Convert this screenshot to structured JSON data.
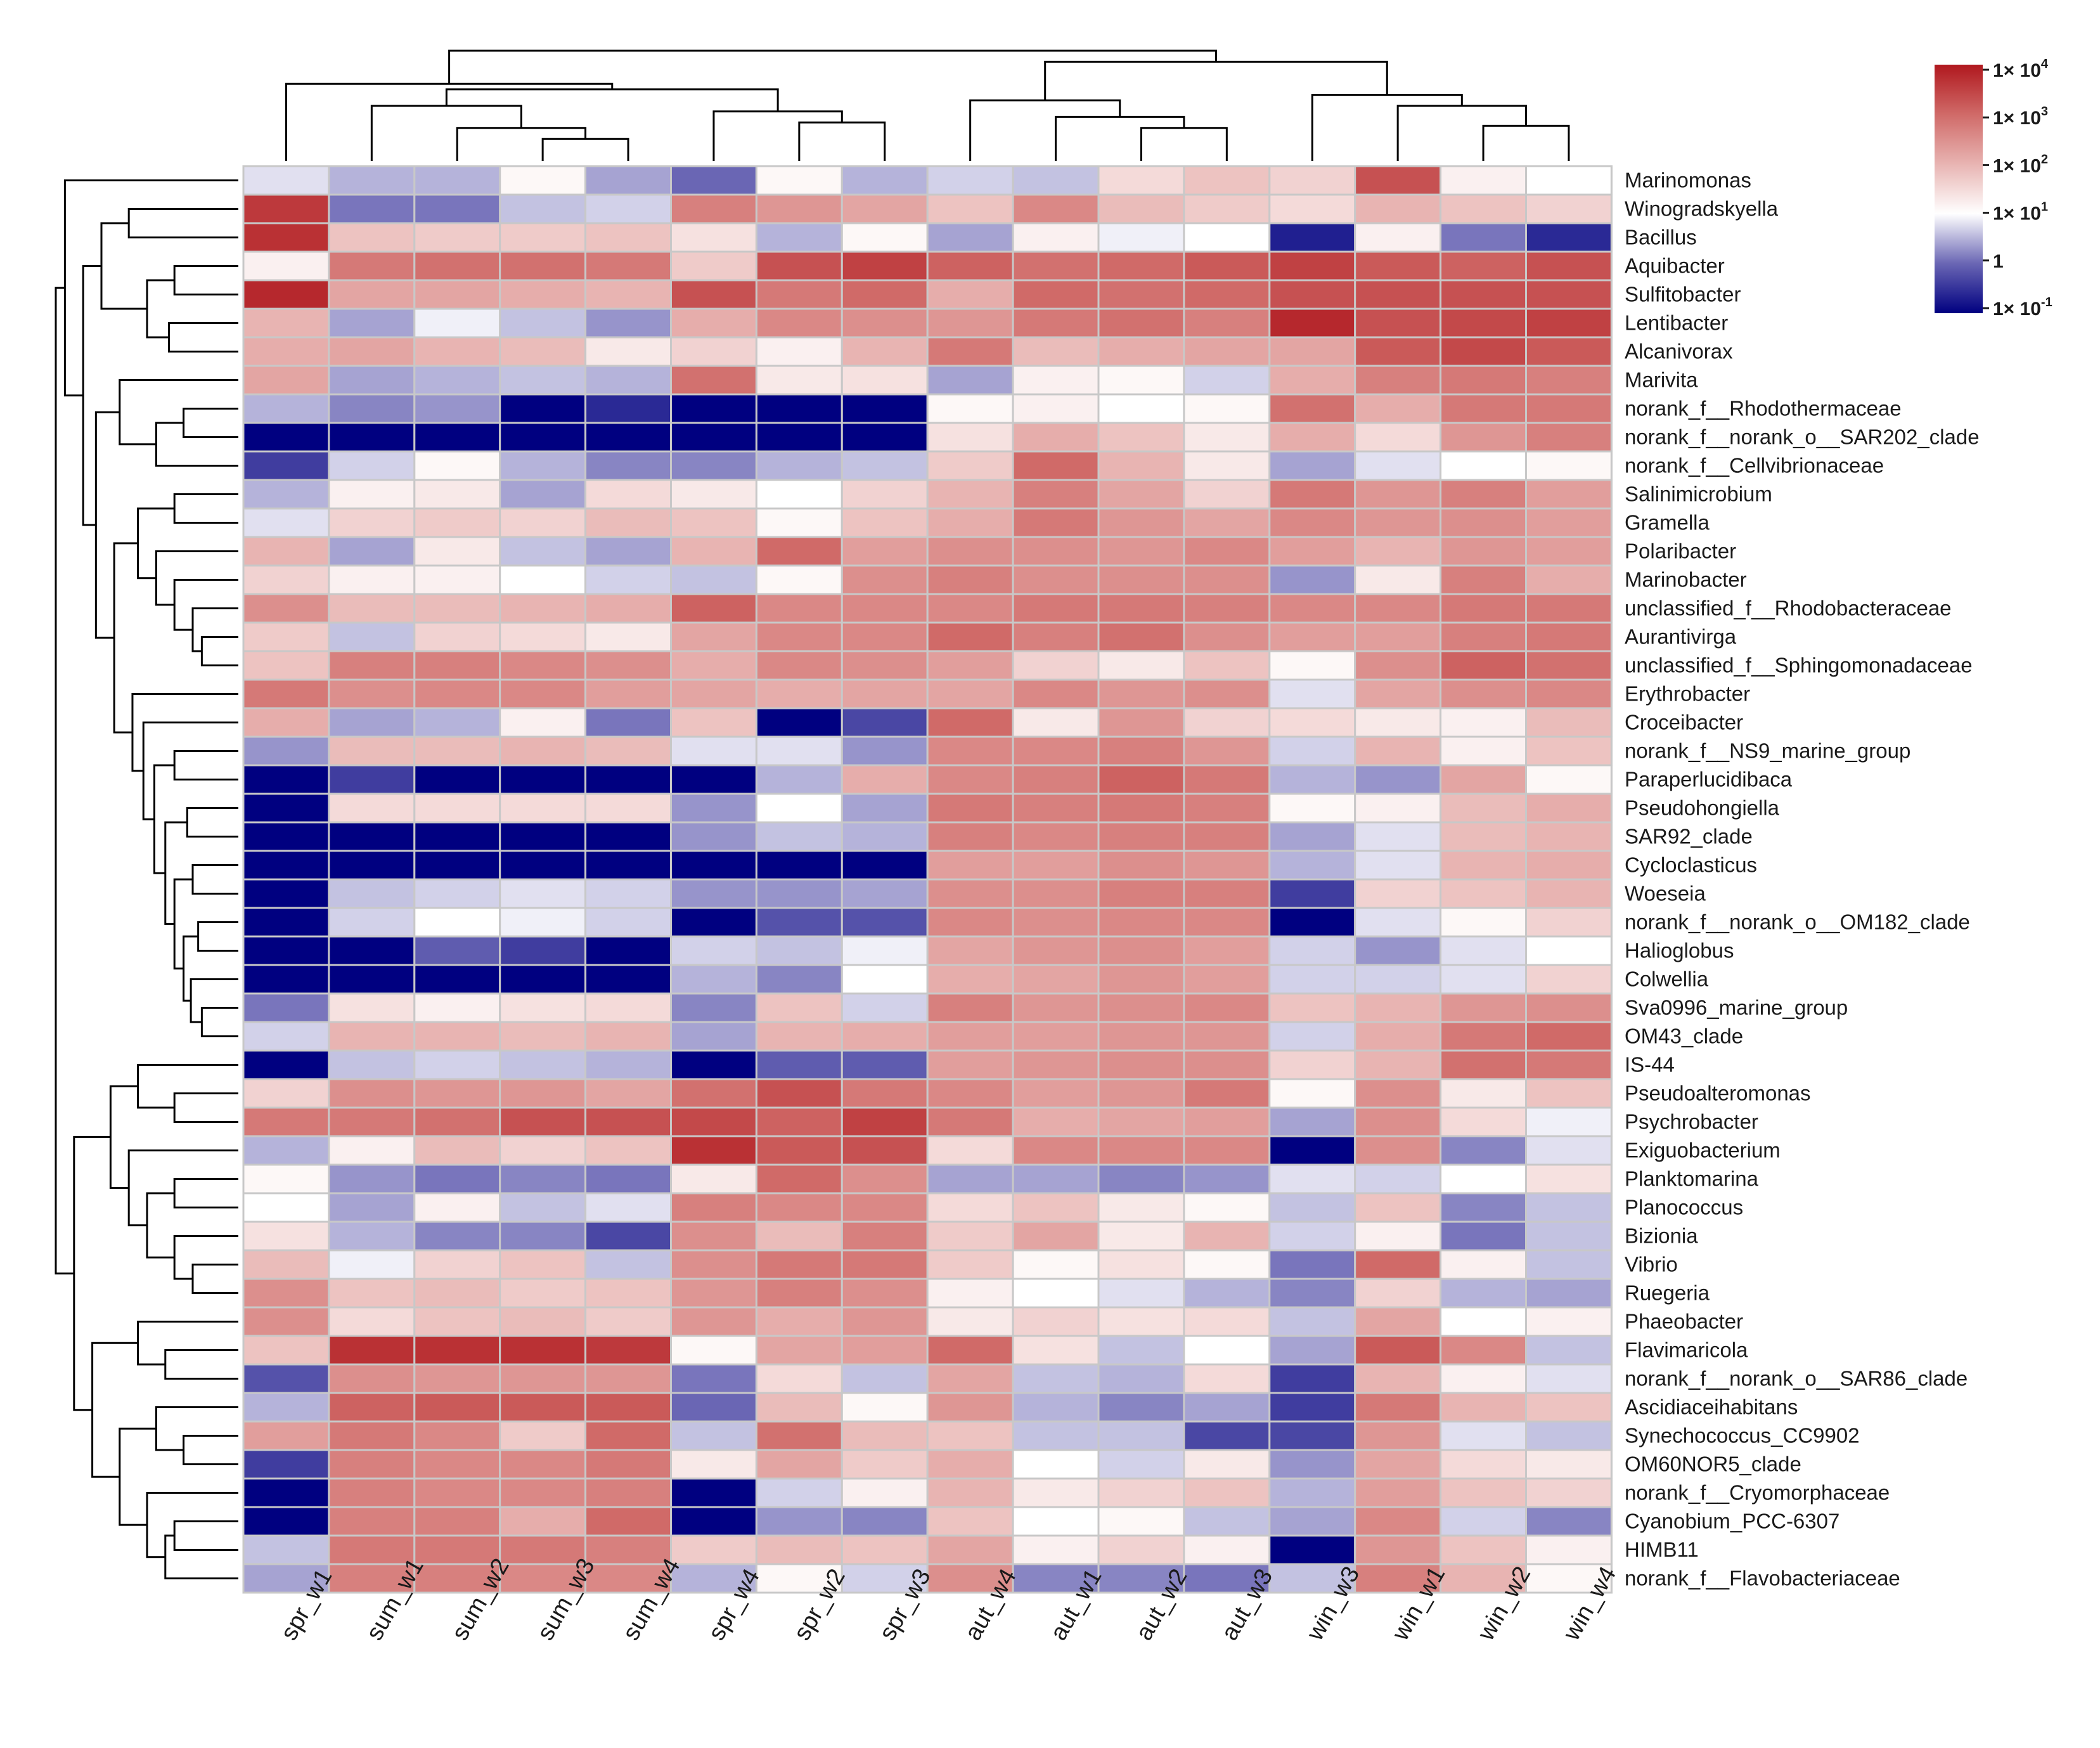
{
  "chart_data": {
    "type": "heatmap",
    "title": "",
    "value_scale": "log10 relative abundance",
    "columns": [
      "spr_w1",
      "sum_w1",
      "sum_w2",
      "sum_w3",
      "sum_w4",
      "spr_w4",
      "spr_w2",
      "spr_w3",
      "aut_w4",
      "aut_w1",
      "aut_w2",
      "aut_w3",
      "win_w3",
      "win_w1",
      "win_w2",
      "win_w4"
    ],
    "rows": [
      {
        "name": "Marinomonas",
        "values": [
          0.8,
          0.5,
          0.5,
          1.1,
          0.4,
          0,
          1.1,
          0.5,
          0.7,
          0.6,
          1.5,
          1.8,
          1.6,
          3.3,
          1.2,
          1.0
        ]
      },
      {
        "name": "Winogradskyella",
        "values": [
          3.6,
          0.1,
          0.1,
          0.6,
          0.7,
          2.7,
          2.4,
          2.2,
          1.8,
          2.6,
          1.9,
          1.7,
          1.5,
          2.0,
          1.8,
          1.6
        ]
      },
      {
        "name": "Bacillus",
        "values": [
          3.7,
          1.8,
          1.7,
          1.7,
          1.8,
          1.4,
          0.5,
          1.1,
          0.4,
          1.2,
          0.9,
          1.0,
          -0.7,
          1.2,
          0.1,
          -0.6
        ]
      },
      {
        "name": "Aquibacter",
        "values": [
          1.2,
          2.8,
          2.9,
          2.9,
          2.8,
          1.7,
          3.3,
          3.5,
          3.1,
          2.9,
          3.0,
          3.2,
          3.5,
          3.2,
          3.1,
          3.3
        ]
      },
      {
        "name": "Sulfitobacter",
        "values": [
          3.8,
          2.2,
          2.2,
          2.1,
          2.0,
          3.3,
          2.8,
          3.0,
          2.1,
          3.0,
          2.9,
          3.0,
          3.3,
          3.3,
          3.3,
          3.3
        ]
      },
      {
        "name": "Lentibacter",
        "values": [
          2.0,
          0.4,
          0.9,
          0.6,
          0.3,
          2.1,
          2.6,
          2.5,
          2.4,
          2.8,
          2.9,
          2.7,
          3.8,
          3.3,
          3.4,
          3.5
        ]
      },
      {
        "name": "Alcanivorax",
        "values": [
          2.1,
          2.2,
          2.0,
          1.9,
          1.3,
          1.6,
          1.2,
          2.0,
          2.8,
          1.9,
          2.1,
          2.2,
          2.2,
          3.2,
          3.4,
          3.2
        ]
      },
      {
        "name": "Marivita",
        "values": [
          2.2,
          0.4,
          0.5,
          0.6,
          0.5,
          2.9,
          1.3,
          1.4,
          0.4,
          1.2,
          1.1,
          0.7,
          2.1,
          2.7,
          2.8,
          2.7
        ]
      },
      {
        "name": "norank_f__Rhodothermaceae",
        "values": [
          0.5,
          0.2,
          0.3,
          -1,
          -0.6,
          -1,
          -1,
          -1,
          1.1,
          1.2,
          1.0,
          1.1,
          2.9,
          2.1,
          2.8,
          2.8
        ]
      },
      {
        "name": "norank_f__norank_o__SAR202_clade",
        "values": [
          -1,
          -1,
          -1,
          -1,
          -1,
          -1,
          -1,
          -1,
          1.4,
          2.1,
          1.8,
          1.3,
          2.1,
          1.5,
          2.4,
          2.7
        ]
      },
      {
        "name": "norank_f__Cellvibrionaceae",
        "values": [
          -0.4,
          0.7,
          1.1,
          0.5,
          0.2,
          0.2,
          0.5,
          0.6,
          1.7,
          3.0,
          2.0,
          1.3,
          0.4,
          0.8,
          1.0,
          1.1
        ]
      },
      {
        "name": "Salinimicrobium",
        "values": [
          0.5,
          1.2,
          1.3,
          0.4,
          1.5,
          1.3,
          1.0,
          1.6,
          2.0,
          2.7,
          2.2,
          1.6,
          2.8,
          2.4,
          2.7,
          2.3
        ]
      },
      {
        "name": "Gramella",
        "values": [
          0.8,
          1.6,
          1.7,
          1.6,
          1.9,
          1.8,
          1.1,
          1.8,
          2.1,
          2.8,
          2.4,
          2.2,
          2.6,
          2.4,
          2.5,
          2.3
        ]
      },
      {
        "name": "Polaribacter",
        "values": [
          2.0,
          0.4,
          1.3,
          0.6,
          0.4,
          2.0,
          3.0,
          2.3,
          2.5,
          2.5,
          2.4,
          2.6,
          2.3,
          2.0,
          2.4,
          2.3
        ]
      },
      {
        "name": "Marinobacter",
        "values": [
          1.6,
          1.2,
          1.2,
          1.0,
          0.7,
          0.6,
          1.1,
          2.5,
          2.7,
          2.5,
          2.5,
          2.5,
          0.3,
          1.3,
          2.7,
          2.1
        ]
      },
      {
        "name": "unclassified_f__Rhodobacteraceae",
        "values": [
          2.5,
          1.9,
          1.9,
          2.0,
          2.1,
          3.1,
          2.6,
          2.6,
          2.6,
          2.8,
          2.8,
          2.7,
          2.6,
          2.6,
          2.8,
          2.8
        ]
      },
      {
        "name": "Aurantivirga",
        "values": [
          1.7,
          0.6,
          1.6,
          1.5,
          1.3,
          2.2,
          2.6,
          2.6,
          3.0,
          2.7,
          2.9,
          2.5,
          2.3,
          2.3,
          2.7,
          2.8
        ]
      },
      {
        "name": "unclassified_f__Sphingomonadaceae",
        "values": [
          1.8,
          2.7,
          2.7,
          2.6,
          2.5,
          2.1,
          2.6,
          2.5,
          2.3,
          1.6,
          1.3,
          1.8,
          1.1,
          2.5,
          3.1,
          2.9
        ]
      },
      {
        "name": "Erythrobacter",
        "values": [
          2.8,
          2.5,
          2.6,
          2.6,
          2.3,
          2.2,
          2.1,
          2.2,
          2.2,
          2.6,
          2.4,
          2.5,
          0.8,
          2.2,
          2.5,
          2.6
        ]
      },
      {
        "name": "Croceibacter",
        "values": [
          2.1,
          0.4,
          0.5,
          1.2,
          0.1,
          1.8,
          -1,
          -0.3,
          3.0,
          1.3,
          2.4,
          1.6,
          1.5,
          1.3,
          1.2,
          1.9
        ]
      },
      {
        "name": "norank_f__NS9_marine_group",
        "values": [
          0.3,
          1.9,
          1.9,
          2.0,
          1.9,
          0.8,
          0.8,
          0.3,
          2.6,
          2.6,
          2.7,
          2.4,
          0.7,
          2.0,
          1.2,
          1.8
        ]
      },
      {
        "name": "Paraperlucidibaca",
        "values": [
          -1,
          -0.4,
          -1,
          -1,
          -1,
          -1,
          0.5,
          2.1,
          2.6,
          2.7,
          3.1,
          2.8,
          0.5,
          0.3,
          2.2,
          1.1
        ]
      },
      {
        "name": "Pseudohongiella",
        "values": [
          -1,
          1.5,
          1.5,
          1.5,
          1.5,
          0.3,
          1.0,
          0.4,
          2.8,
          2.7,
          2.8,
          2.7,
          1.1,
          1.2,
          1.9,
          2.1
        ]
      },
      {
        "name": "SAR92_clade",
        "values": [
          -1,
          -1,
          -1,
          -1,
          -1,
          0.3,
          0.6,
          0.5,
          2.7,
          2.6,
          2.7,
          2.7,
          0.4,
          0.8,
          1.9,
          2.0
        ]
      },
      {
        "name": "Cycloclasticus",
        "values": [
          -1,
          -1,
          -1,
          -1,
          -1,
          -1,
          -1,
          -1,
          2.3,
          2.3,
          2.5,
          2.4,
          0.5,
          0.8,
          2.0,
          2.1
        ]
      },
      {
        "name": "Woeseia",
        "values": [
          -1,
          0.6,
          0.7,
          0.8,
          0.7,
          0.3,
          0.3,
          0.4,
          2.5,
          2.5,
          2.7,
          2.7,
          -0.4,
          1.6,
          1.8,
          2.0
        ]
      },
      {
        "name": "norank_f__norank_o__OM182_clade",
        "values": [
          -1,
          0.7,
          1.0,
          0.9,
          0.7,
          -1,
          -0.2,
          -0.2,
          2.6,
          2.5,
          2.6,
          2.6,
          -1,
          0.8,
          1.1,
          1.6
        ]
      },
      {
        "name": "Halioglobus",
        "values": [
          -1,
          -1,
          -0.1,
          -0.4,
          -1,
          0.7,
          0.6,
          0.9,
          2.2,
          2.4,
          2.5,
          2.3,
          0.7,
          0.3,
          0.8,
          1.0
        ]
      },
      {
        "name": "Colwellia",
        "values": [
          -1,
          -1,
          -1,
          -1,
          -1,
          0.5,
          0.2,
          1.0,
          2.1,
          2.2,
          2.4,
          2.3,
          0.7,
          0.7,
          0.8,
          1.6
        ]
      },
      {
        "name": "Sva0996_marine_group",
        "values": [
          0.1,
          1.4,
          1.2,
          1.4,
          1.5,
          0.2,
          1.8,
          0.7,
          2.7,
          2.4,
          2.5,
          2.6,
          1.8,
          2.0,
          2.4,
          2.5
        ]
      },
      {
        "name": "OM43_clade",
        "values": [
          0.7,
          2.0,
          2.0,
          1.9,
          2.0,
          0.4,
          2.0,
          2.1,
          2.3,
          2.3,
          2.4,
          2.4,
          0.7,
          2.1,
          2.8,
          3.0
        ]
      },
      {
        "name": "IS-44",
        "values": [
          -1,
          0.6,
          0.7,
          0.6,
          0.5,
          -1,
          -0.1,
          -0.1,
          2.3,
          2.4,
          2.5,
          2.5,
          1.6,
          2.0,
          2.9,
          2.8
        ]
      },
      {
        "name": "Pseudoalteromonas",
        "values": [
          1.6,
          2.5,
          2.4,
          2.4,
          2.2,
          2.9,
          3.3,
          2.8,
          2.6,
          2.3,
          2.4,
          2.8,
          1.1,
          2.5,
          1.3,
          1.8
        ]
      },
      {
        "name": "Psychrobacter",
        "values": [
          2.8,
          2.8,
          2.9,
          3.3,
          3.3,
          3.4,
          3.1,
          3.5,
          2.8,
          2.1,
          2.2,
          2.3,
          0.4,
          2.5,
          1.5,
          0.9
        ]
      },
      {
        "name": "Exiguobacterium",
        "values": [
          0.5,
          1.2,
          1.9,
          1.6,
          1.8,
          3.7,
          3.2,
          3.3,
          1.5,
          2.6,
          2.6,
          2.6,
          -1,
          2.5,
          0.2,
          0.8
        ]
      },
      {
        "name": "Planktomarina",
        "values": [
          1.1,
          0.3,
          0.1,
          0.2,
          0.1,
          1.3,
          3.0,
          2.5,
          0.4,
          0.4,
          0.2,
          0.3,
          0.8,
          0.7,
          1.0,
          1.4
        ]
      },
      {
        "name": "Planococcus",
        "values": [
          1.0,
          0.4,
          1.2,
          0.6,
          0.8,
          2.7,
          2.6,
          2.6,
          1.5,
          1.8,
          1.3,
          1.1,
          0.6,
          1.8,
          0.2,
          0.6
        ]
      },
      {
        "name": "Bizionia",
        "values": [
          1.4,
          0.5,
          0.2,
          0.2,
          -0.3,
          2.5,
          1.9,
          2.7,
          1.7,
          2.2,
          1.3,
          2.0,
          0.7,
          1.2,
          0.1,
          0.6
        ]
      },
      {
        "name": "Vibrio",
        "values": [
          1.9,
          0.9,
          1.6,
          1.8,
          0.6,
          2.5,
          2.8,
          2.8,
          1.7,
          1.1,
          1.4,
          1.1,
          0.1,
          3.0,
          1.2,
          0.6
        ]
      },
      {
        "name": "Ruegeria",
        "values": [
          2.5,
          1.8,
          1.9,
          1.7,
          1.8,
          2.4,
          2.7,
          2.5,
          1.2,
          1.0,
          0.8,
          0.5,
          0.2,
          1.6,
          0.5,
          0.4
        ]
      },
      {
        "name": "Phaeobacter",
        "values": [
          2.5,
          1.5,
          1.8,
          1.9,
          1.7,
          2.4,
          2.1,
          2.4,
          1.3,
          1.6,
          1.4,
          1.5,
          0.6,
          2.2,
          1.0,
          1.2
        ]
      },
      {
        "name": "Flavimaricola",
        "values": [
          1.8,
          3.7,
          3.7,
          3.7,
          3.6,
          1.1,
          2.2,
          2.3,
          3.0,
          1.4,
          0.6,
          1.0,
          0.4,
          3.2,
          2.6,
          0.6
        ]
      },
      {
        "name": "norank_f__norank_o__SAR86_clade",
        "values": [
          -0.2,
          2.5,
          2.4,
          2.4,
          2.4,
          0.1,
          1.5,
          0.6,
          2.2,
          0.6,
          0.5,
          1.5,
          -0.4,
          2.0,
          1.2,
          0.8
        ]
      },
      {
        "name": "Ascidiaceihabitans",
        "values": [
          0.5,
          3.1,
          3.2,
          3.2,
          3.2,
          0,
          1.9,
          1.1,
          2.4,
          0.5,
          0.2,
          0.4,
          -0.4,
          2.8,
          2.0,
          1.8
        ]
      },
      {
        "name": "Synechococcus_CC9902",
        "values": [
          2.3,
          2.8,
          2.6,
          1.7,
          3.0,
          0.6,
          2.9,
          1.9,
          1.8,
          0.6,
          0.6,
          -0.3,
          -0.3,
          2.4,
          0.8,
          0.6
        ]
      },
      {
        "name": "OM60NOR5_clade",
        "values": [
          -0.4,
          2.7,
          2.6,
          2.6,
          2.8,
          1.3,
          2.2,
          1.7,
          2.1,
          1.0,
          0.7,
          1.3,
          0.3,
          2.2,
          1.5,
          1.3
        ]
      },
      {
        "name": "norank_f__Cryomorphaceae",
        "values": [
          -1,
          2.7,
          2.6,
          2.6,
          2.7,
          -1,
          0.7,
          1.2,
          2.0,
          1.3,
          1.6,
          1.8,
          0.5,
          2.3,
          1.8,
          1.6
        ]
      },
      {
        "name": "Cyanobium_PCC-6307",
        "values": [
          -1,
          2.7,
          2.7,
          2.1,
          3.0,
          -1,
          0.3,
          0.2,
          1.8,
          1.0,
          1.1,
          0.6,
          0.4,
          2.6,
          0.7,
          0.2
        ]
      },
      {
        "name": "HIMB11",
        "values": [
          0.6,
          2.8,
          2.8,
          2.8,
          2.7,
          1.7,
          1.9,
          1.8,
          2.2,
          1.2,
          1.6,
          1.2,
          -1,
          2.4,
          1.8,
          1.2
        ]
      },
      {
        "name": "norank_f__Flavobacteriaceae",
        "values": [
          0.4,
          2.7,
          2.7,
          2.6,
          2.6,
          0.5,
          1.1,
          0.7,
          2.5,
          0.2,
          0.2,
          0.1,
          0.6,
          2.7,
          2.0,
          1.1
        ]
      }
    ],
    "color_scale": {
      "min": -1,
      "max": 4,
      "stops": [
        {
          "value": -1,
          "color": "#000080"
        },
        {
          "value": 0,
          "color": "#6a66b4"
        },
        {
          "value": 1,
          "color": "#ffffff"
        },
        {
          "value": 2,
          "color": "#e8b4b2"
        },
        {
          "value": 3,
          "color": "#d06a68"
        },
        {
          "value": 4,
          "color": "#b0181e"
        }
      ]
    },
    "legend": {
      "base": "1",
      "times": "×",
      "ticks": [
        {
          "label": "1× 10",
          "exp": "4"
        },
        {
          "label": "1× 10",
          "exp": "3"
        },
        {
          "label": "1× 10",
          "exp": "2"
        },
        {
          "label": "1× 10",
          "exp": "1"
        },
        {
          "label": "1",
          "exp": ""
        },
        {
          "label": "1× 10",
          "exp": "-1"
        }
      ]
    },
    "cell_border_color": "#c8c8c8",
    "dendrogram_color": "#000000"
  }
}
